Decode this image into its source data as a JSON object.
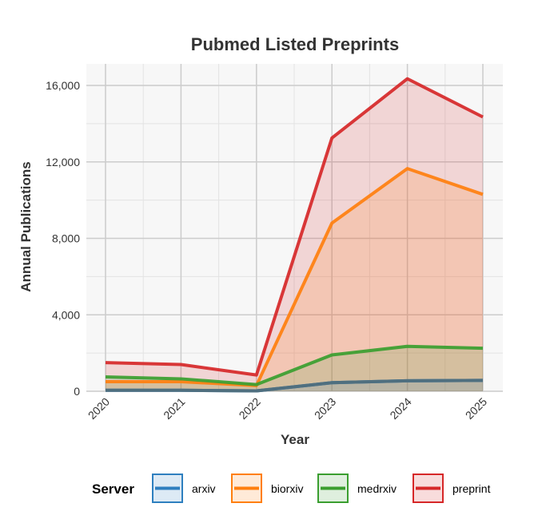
{
  "chart_data": {
    "type": "area",
    "title": "Pubmed Listed Preprints",
    "xlabel": "Year",
    "ylabel": "Annual Publications",
    "x": [
      "2020",
      "2021",
      "2022",
      "2023",
      "2024",
      "2025"
    ],
    "ylim": [
      0,
      16500
    ],
    "yticks": [
      0,
      4000,
      8000,
      12000,
      16000
    ],
    "ytick_labels": [
      "0",
      "4,000",
      "8,000",
      "12,000",
      "16,000"
    ],
    "grid": true,
    "legend_placement": "bottom",
    "legend_title": "Server",
    "series": [
      {
        "name": "arxiv",
        "color": "#2e7fbf",
        "values": [
          50,
          50,
          20,
          450,
          550,
          570
        ]
      },
      {
        "name": "biorxiv",
        "color": "#ff7f0e",
        "values": [
          500,
          500,
          300,
          8800,
          11650,
          10300
        ]
      },
      {
        "name": "medrxiv",
        "color": "#3a9e2f",
        "values": [
          750,
          650,
          350,
          1900,
          2350,
          2250
        ]
      },
      {
        "name": "preprint",
        "color": "#d62728",
        "values": [
          1500,
          1400,
          850,
          13250,
          16350,
          14350
        ]
      }
    ]
  }
}
